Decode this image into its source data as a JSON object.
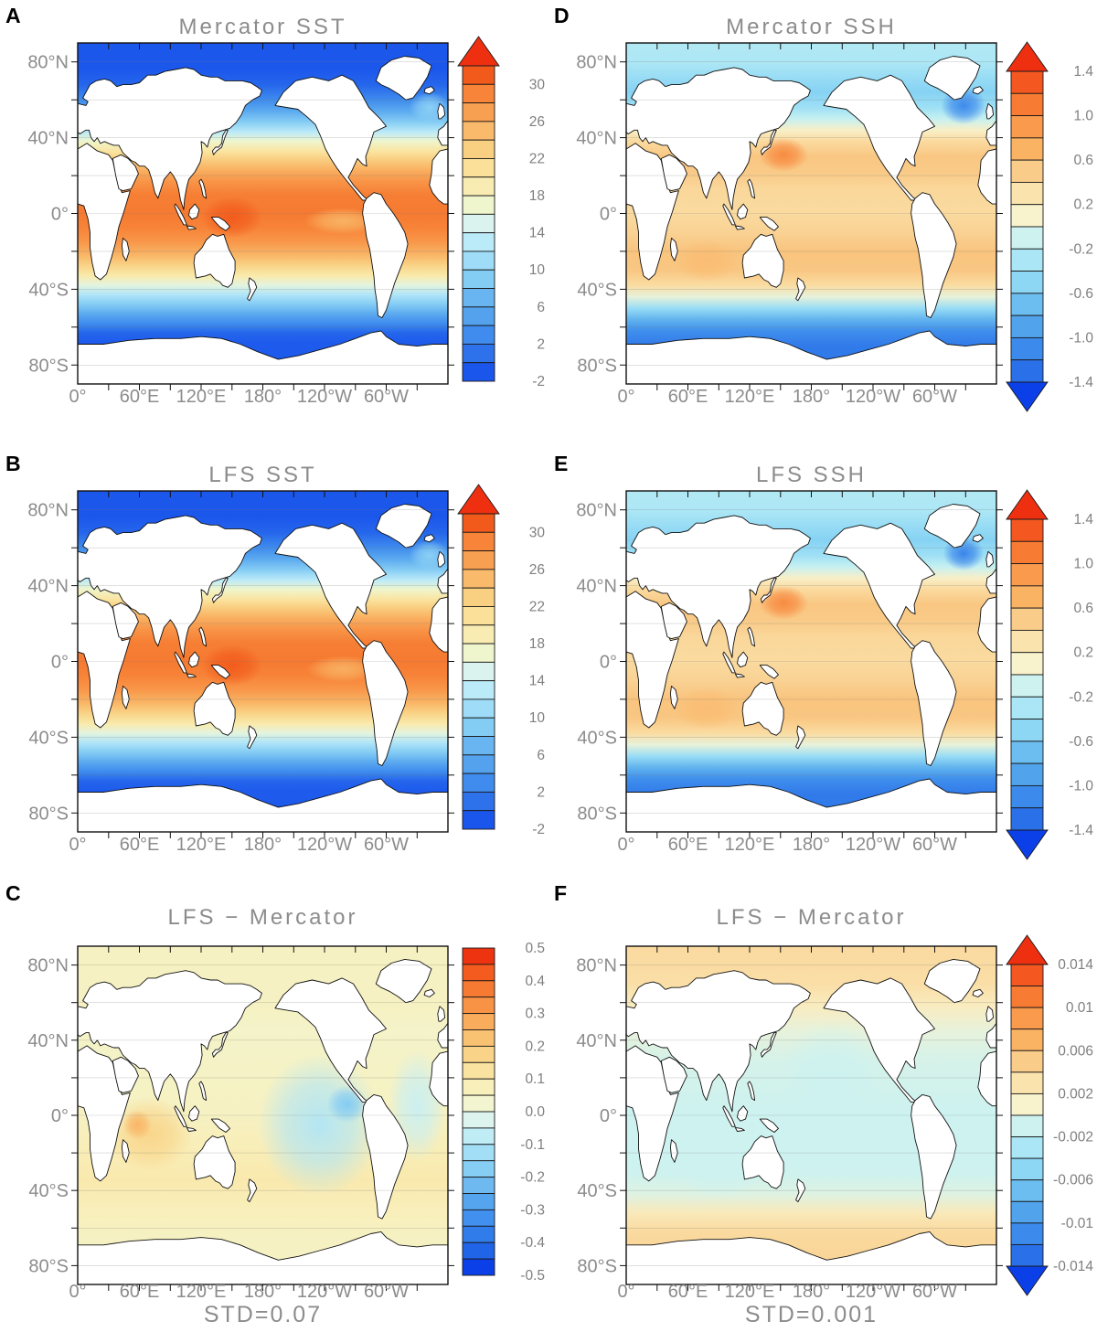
{
  "chart_data": {
    "type": "heatmap",
    "description": "Six-panel global ocean map figure comparing Mercator and LFS model fields (plate carree maps centered on 180deg) with discrete blue-to-red filled colorbars",
    "axes": {
      "lat_ticks": [
        {
          "label": "80°N",
          "lat": 80
        },
        {
          "label": "40°N",
          "lat": 40
        },
        {
          "label": "0°",
          "lat": 0
        },
        {
          "label": "40°S",
          "lat": -40
        },
        {
          "label": "80°S",
          "lat": -80
        }
      ],
      "lon_ticks": [
        {
          "label": "0°",
          "lon": 0
        },
        {
          "label": "60°E",
          "lon": 60
        },
        {
          "label": "120°E",
          "lon": 120
        },
        {
          "label": "180°",
          "lon": 180
        },
        {
          "label": "120°W",
          "lon": 240
        },
        {
          "label": "60°W",
          "lon": 300
        }
      ],
      "lon_minor_step_deg": 30,
      "lat_minor_step_deg": 20,
      "lon_range": [
        0,
        360
      ],
      "lat_range": [
        -90,
        90
      ]
    },
    "palettes": {
      "sst": [
        "#1a55ec",
        "#2d72ea",
        "#3f8cee",
        "#54a2ee",
        "#68b5f1",
        "#83ccf4",
        "#9edcf7",
        "#bbeaf8",
        "#daf3ee",
        "#eff5cc",
        "#f9ecb2",
        "#fae098",
        "#f9cf82",
        "#f9bb6b",
        "#f8a052",
        "#f78438",
        "#f25a1c"
      ],
      "ssh": [
        "#2a70e8",
        "#3b8aec",
        "#51a4ec",
        "#6cbdf0",
        "#8dd7f5",
        "#aae6f5",
        "#cdf2f0",
        "#f8f2cd",
        "#fae3ad",
        "#f9cc8a",
        "#fab263",
        "#f99a4d",
        "#f87b33",
        "#f45820"
      ],
      "diff": [
        "#0b3fe8",
        "#2064e8",
        "#2f7cea",
        "#418fee",
        "#55a5ee",
        "#6db9f0",
        "#86cef4",
        "#a2dff6",
        "#c0ecf6",
        "#ddf4ee",
        "#f2f5d0",
        "#f9efba",
        "#fae3a0",
        "#f9d488",
        "#f9c272",
        "#f9ac5c",
        "#f89346",
        "#f67a31",
        "#f45b1e",
        "#ee3311"
      ],
      "arrow_red": "#ee2f10",
      "arrow_blue": "#0b3fe8",
      "title_color": "#8c8c8c",
      "axis_label_color": "#8c8c8c",
      "colorbar_label_color": "#808080"
    },
    "panels": [
      {
        "letter": "A",
        "title": "Mercator SST",
        "colorbar": {
          "min": -2,
          "max": 32,
          "step": 2,
          "palette": "sst",
          "arrow_top": true,
          "arrow_bottom": false,
          "ticks": [
            {
              "value": 30,
              "label": "30"
            },
            {
              "value": 26,
              "label": "26"
            },
            {
              "value": 22,
              "label": "22"
            },
            {
              "value": 18,
              "label": "18"
            },
            {
              "value": 14,
              "label": "14"
            },
            {
              "value": 10,
              "label": "10"
            },
            {
              "value": 6,
              "label": "6"
            },
            {
              "value": 2,
              "label": "2"
            },
            {
              "value": -2,
              "label": "-2"
            }
          ]
        },
        "zonal_profile": [
          [
            90,
            -1.8
          ],
          [
            76,
            -1.8
          ],
          [
            68,
            -0.5
          ],
          [
            60,
            2
          ],
          [
            54,
            5
          ],
          [
            48,
            8.5
          ],
          [
            43,
            12
          ],
          [
            38,
            16
          ],
          [
            33,
            19.5
          ],
          [
            28,
            22.5
          ],
          [
            23,
            25
          ],
          [
            17,
            27
          ],
          [
            10,
            28.3
          ],
          [
            0,
            28.6
          ],
          [
            -8,
            28
          ],
          [
            -15,
            26.8
          ],
          [
            -22,
            24.5
          ],
          [
            -28,
            21.5
          ],
          [
            -33,
            18.5
          ],
          [
            -38,
            15
          ],
          [
            -43,
            11.5
          ],
          [
            -48,
            8
          ],
          [
            -53,
            5
          ],
          [
            -58,
            2
          ],
          [
            -63,
            -0.5
          ],
          [
            -68,
            -1.5
          ],
          [
            -90,
            -1.8
          ]
        ],
        "features": [
          {
            "name": "west-pacific-warm-pool",
            "lon": 150,
            "lat": -2,
            "rlon": 30,
            "rlat": 11,
            "value": 30.8
          },
          {
            "name": "east-pacific-cold-tongue",
            "lon": 258,
            "lat": -4,
            "rlon": 38,
            "rlat": 7,
            "value": 24.5
          },
          {
            "name": "north-atlantic-drift",
            "lon": 342,
            "lat": 56,
            "rlon": 20,
            "rlat": 8,
            "value": 9
          }
        ]
      },
      {
        "letter": "B",
        "title": "LFS SST",
        "colorbar": {
          "min": -2,
          "max": 32,
          "step": 2,
          "palette": "sst",
          "arrow_top": true,
          "arrow_bottom": false,
          "ticks": [
            {
              "value": 30,
              "label": "30"
            },
            {
              "value": 26,
              "label": "26"
            },
            {
              "value": 22,
              "label": "22"
            },
            {
              "value": 18,
              "label": "18"
            },
            {
              "value": 14,
              "label": "14"
            },
            {
              "value": 10,
              "label": "10"
            },
            {
              "value": 6,
              "label": "6"
            },
            {
              "value": 2,
              "label": "2"
            },
            {
              "value": -2,
              "label": "-2"
            }
          ]
        },
        "zonal_profile": [
          [
            90,
            -1.8
          ],
          [
            76,
            -1.8
          ],
          [
            68,
            -0.5
          ],
          [
            60,
            2
          ],
          [
            54,
            5
          ],
          [
            48,
            8.5
          ],
          [
            43,
            12
          ],
          [
            38,
            16
          ],
          [
            33,
            19.5
          ],
          [
            28,
            22.5
          ],
          [
            23,
            25
          ],
          [
            17,
            27
          ],
          [
            10,
            28.3
          ],
          [
            0,
            28.6
          ],
          [
            -8,
            28
          ],
          [
            -15,
            26.8
          ],
          [
            -22,
            24.5
          ],
          [
            -28,
            21.5
          ],
          [
            -33,
            18.5
          ],
          [
            -38,
            15
          ],
          [
            -43,
            11.5
          ],
          [
            -48,
            8
          ],
          [
            -53,
            5
          ],
          [
            -58,
            2
          ],
          [
            -63,
            -0.5
          ],
          [
            -68,
            -1.5
          ],
          [
            -90,
            -1.8
          ]
        ],
        "features": [
          {
            "name": "west-pacific-warm-pool",
            "lon": 150,
            "lat": -2,
            "rlon": 30,
            "rlat": 11,
            "value": 30.8
          },
          {
            "name": "east-pacific-cold-tongue",
            "lon": 258,
            "lat": -4,
            "rlon": 36,
            "rlat": 7,
            "value": 24.8
          },
          {
            "name": "north-atlantic-drift",
            "lon": 342,
            "lat": 56,
            "rlon": 20,
            "rlat": 8,
            "value": 9
          }
        ]
      },
      {
        "letter": "C",
        "title": "LFS − Mercator",
        "std_label": "STD=0.07",
        "colorbar": {
          "min": -0.5,
          "max": 0.5,
          "step": 0.05,
          "palette": "diff",
          "arrow_top": false,
          "arrow_bottom": false,
          "ticks": [
            {
              "value": 0.5,
              "label": "0.5"
            },
            {
              "value": 0.4,
              "label": "0.4"
            },
            {
              "value": 0.3,
              "label": "0.3"
            },
            {
              "value": 0.2,
              "label": "0.2"
            },
            {
              "value": 0.1,
              "label": "0.1"
            },
            {
              "value": 0.0,
              "label": "0.0"
            },
            {
              "value": -0.1,
              "label": "-0.1"
            },
            {
              "value": -0.2,
              "label": "-0.2"
            },
            {
              "value": -0.3,
              "label": "-0.3"
            },
            {
              "value": -0.4,
              "label": "-0.4"
            },
            {
              "value": -0.5,
              "label": "-0.5"
            }
          ]
        },
        "zonal_profile": [
          [
            90,
            0.04
          ],
          [
            60,
            0.04
          ],
          [
            45,
            0.02
          ],
          [
            20,
            0.03
          ],
          [
            0,
            0.04
          ],
          [
            -20,
            0.06
          ],
          [
            -35,
            0.08
          ],
          [
            -50,
            0.05
          ],
          [
            -65,
            0.04
          ],
          [
            -90,
            0.03
          ]
        ],
        "features": [
          {
            "name": "indian-ocean-warm-bias",
            "lon": 70,
            "lat": -10,
            "rlon": 42,
            "rlat": 20,
            "value": 0.15
          },
          {
            "name": "west-indian-warm-core",
            "lon": 58,
            "lat": -5,
            "rlon": 14,
            "rlat": 8,
            "value": 0.24
          },
          {
            "name": "east-pacific-cool-bias",
            "lon": 235,
            "lat": -5,
            "rlon": 60,
            "rlat": 38,
            "value": -0.12
          },
          {
            "name": "central-american-cool-core",
            "lon": 262,
            "lat": 6,
            "rlon": 20,
            "rlat": 10,
            "value": -0.2
          },
          {
            "name": "atlantic-cool-bias",
            "lon": 330,
            "lat": 5,
            "rlon": 28,
            "rlat": 30,
            "value": -0.08
          }
        ]
      },
      {
        "letter": "D",
        "title": "Mercator SSH",
        "colorbar": {
          "min": -1.4,
          "max": 1.4,
          "step": 0.2,
          "palette": "ssh",
          "arrow_top": true,
          "arrow_bottom": true,
          "ticks": [
            {
              "value": 1.4,
              "label": "1.4"
            },
            {
              "value": 1.0,
              "label": "1.0"
            },
            {
              "value": 0.6,
              "label": "0.6"
            },
            {
              "value": 0.2,
              "label": "0.2"
            },
            {
              "value": -0.2,
              "label": "-0.2"
            },
            {
              "value": -0.6,
              "label": "-0.6"
            },
            {
              "value": -1.0,
              "label": "-1.0"
            },
            {
              "value": -1.4,
              "label": "-1.4"
            }
          ]
        },
        "zonal_profile": [
          [
            90,
            -0.35
          ],
          [
            80,
            -0.38
          ],
          [
            72,
            -0.5
          ],
          [
            64,
            -0.6
          ],
          [
            56,
            -0.45
          ],
          [
            50,
            -0.2
          ],
          [
            44,
            0.05
          ],
          [
            38,
            0.3
          ],
          [
            30,
            0.45
          ],
          [
            22,
            0.42
          ],
          [
            12,
            0.32
          ],
          [
            0,
            0.3
          ],
          [
            -10,
            0.38
          ],
          [
            -20,
            0.48
          ],
          [
            -30,
            0.45
          ],
          [
            -38,
            0.28
          ],
          [
            -44,
            -0.05
          ],
          [
            -50,
            -0.5
          ],
          [
            -56,
            -0.85
          ],
          [
            -62,
            -1.15
          ],
          [
            -70,
            -1.3
          ],
          [
            -90,
            -1.3
          ]
        ],
        "features": [
          {
            "name": "kuroshio-extension-high",
            "lon": 153,
            "lat": 31,
            "rlon": 24,
            "rlat": 9,
            "value": 0.95
          },
          {
            "name": "subpolar-north-atlantic-low",
            "lon": 328,
            "lat": 57,
            "rlon": 22,
            "rlat": 10,
            "value": -1.2
          },
          {
            "name": "indian-subtropical-high",
            "lon": 78,
            "lat": -25,
            "rlon": 32,
            "rlat": 11,
            "value": 0.55
          }
        ]
      },
      {
        "letter": "E",
        "title": "LFS SSH",
        "colorbar": {
          "min": -1.4,
          "max": 1.4,
          "step": 0.2,
          "palette": "ssh",
          "arrow_top": true,
          "arrow_bottom": true,
          "ticks": [
            {
              "value": 1.4,
              "label": "1.4"
            },
            {
              "value": 1.0,
              "label": "1.0"
            },
            {
              "value": 0.6,
              "label": "0.6"
            },
            {
              "value": 0.2,
              "label": "0.2"
            },
            {
              "value": -0.2,
              "label": "-0.2"
            },
            {
              "value": -0.6,
              "label": "-0.6"
            },
            {
              "value": -1.0,
              "label": "-1.0"
            },
            {
              "value": -1.4,
              "label": "-1.4"
            }
          ]
        },
        "zonal_profile": [
          [
            90,
            -0.35
          ],
          [
            80,
            -0.38
          ],
          [
            72,
            -0.5
          ],
          [
            64,
            -0.6
          ],
          [
            56,
            -0.45
          ],
          [
            50,
            -0.2
          ],
          [
            44,
            0.05
          ],
          [
            38,
            0.3
          ],
          [
            30,
            0.45
          ],
          [
            22,
            0.42
          ],
          [
            12,
            0.32
          ],
          [
            0,
            0.3
          ],
          [
            -10,
            0.38
          ],
          [
            -20,
            0.48
          ],
          [
            -30,
            0.45
          ],
          [
            -38,
            0.28
          ],
          [
            -44,
            -0.05
          ],
          [
            -50,
            -0.5
          ],
          [
            -56,
            -0.85
          ],
          [
            -62,
            -1.15
          ],
          [
            -70,
            -1.3
          ],
          [
            -90,
            -1.3
          ]
        ],
        "features": [
          {
            "name": "kuroshio-extension-high",
            "lon": 153,
            "lat": 31,
            "rlon": 24,
            "rlat": 9,
            "value": 0.95
          },
          {
            "name": "subpolar-north-atlantic-low",
            "lon": 328,
            "lat": 57,
            "rlon": 20,
            "rlat": 9,
            "value": -1.25
          },
          {
            "name": "indian-subtropical-high",
            "lon": 78,
            "lat": -25,
            "rlon": 32,
            "rlat": 11,
            "value": 0.55
          }
        ]
      },
      {
        "letter": "F",
        "title": "LFS − Mercator",
        "std_label": "STD=0.001",
        "colorbar": {
          "min": -0.014,
          "max": 0.014,
          "step": 0.002,
          "palette": "ssh",
          "arrow_top": true,
          "arrow_bottom": true,
          "ticks": [
            {
              "value": 0.014,
              "label": "0.014"
            },
            {
              "value": 0.01,
              "label": "0.01"
            },
            {
              "value": 0.006,
              "label": "0.006"
            },
            {
              "value": 0.002,
              "label": "0.002"
            },
            {
              "value": -0.002,
              "label": "-0.002"
            },
            {
              "value": -0.006,
              "label": "-0.006"
            },
            {
              "value": -0.01,
              "label": "-0.01"
            },
            {
              "value": -0.014,
              "label": "-0.014"
            }
          ]
        },
        "zonal_profile": [
          [
            90,
            0.003
          ],
          [
            70,
            0.0025
          ],
          [
            58,
            0.001
          ],
          [
            45,
            -0.0005
          ],
          [
            30,
            -0.0015
          ],
          [
            0,
            -0.002
          ],
          [
            -30,
            -0.002
          ],
          [
            -42,
            -0.001
          ],
          [
            -52,
            0.0015
          ],
          [
            -62,
            0.003
          ],
          [
            -75,
            0.0035
          ],
          [
            -90,
            0.003
          ]
        ],
        "features": [
          {
            "name": "north-pacific-neutral",
            "lon": 200,
            "lat": 20,
            "rlon": 50,
            "rlat": 30,
            "value": -0.002
          },
          {
            "name": "south-indian-neutral",
            "lon": 90,
            "lat": -25,
            "rlon": 45,
            "rlat": 20,
            "value": -0.002
          }
        ]
      }
    ]
  }
}
